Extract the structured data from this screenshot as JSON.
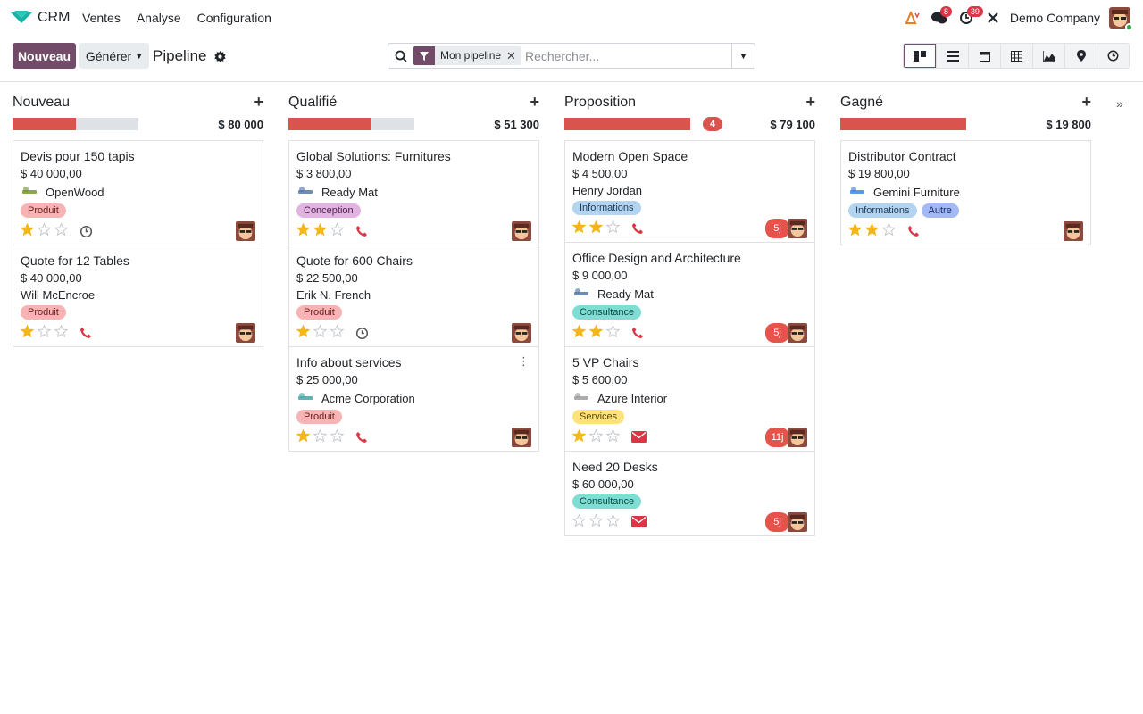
{
  "app": {
    "name": "CRM"
  },
  "menu": [
    "Ventes",
    "Analyse",
    "Configuration"
  ],
  "systray": {
    "messages_count": "8",
    "activities_count": "39",
    "company": "Demo Company"
  },
  "toolbar": {
    "new_label": "Nouveau",
    "generate_label": "Générer",
    "breadcrumb": "Pipeline"
  },
  "search": {
    "facet": "Mon pipeline",
    "placeholder": "Rechercher..."
  },
  "views": [
    "kanban-icon",
    "list-icon",
    "calendar-icon",
    "pivot-icon",
    "graph-icon",
    "map-icon",
    "activity-icon"
  ],
  "colors": {
    "accent": "#714b67",
    "progress": "#d9534f",
    "star": "#f3b71b"
  },
  "columns": [
    {
      "title": "Nouveau",
      "sum": "$ 80 000",
      "progress": 0.5,
      "count": "",
      "cards": [
        {
          "title": "Devis pour 150 tapis",
          "amount": "$ 40 000,00",
          "partner": "OpenWood",
          "tags": [
            {
              "label": "Produit",
              "type": "produit"
            }
          ],
          "stars": 1,
          "activity": "clock",
          "days": ""
        },
        {
          "title": "Quote for 12 Tables",
          "amount": "$ 40 000,00",
          "partner": "Will McEncroe",
          "tags": [
            {
              "label": "Produit",
              "type": "produit"
            }
          ],
          "stars": 1,
          "activity": "phone",
          "days": ""
        }
      ]
    },
    {
      "title": "Qualifié",
      "sum": "$ 51 300",
      "progress": 0.66,
      "count": "",
      "cards": [
        {
          "title": "Global Solutions: Furnitures",
          "amount": "$ 3 800,00",
          "partner": "Ready Mat",
          "tags": [
            {
              "label": "Conception",
              "type": "conception"
            }
          ],
          "stars": 2,
          "activity": "phone",
          "days": ""
        },
        {
          "title": "Quote for 600 Chairs",
          "amount": "$ 22 500,00",
          "partner": "Erik N. French",
          "tags": [
            {
              "label": "Produit",
              "type": "produit"
            }
          ],
          "stars": 1,
          "activity": "clock",
          "days": ""
        },
        {
          "title": "Info about services",
          "amount": "$ 25 000,00",
          "partner": "Acme Corporation",
          "tags": [
            {
              "label": "Produit",
              "type": "produit"
            }
          ],
          "stars": 1,
          "activity": "phone",
          "days": ""
        }
      ]
    },
    {
      "title": "Proposition",
      "sum": "$ 79 100",
      "progress": 1.0,
      "count": "4",
      "cards": [
        {
          "title": "Modern Open Space",
          "amount": "$ 4 500,00",
          "partner": "Henry Jordan",
          "tags": [
            {
              "label": "Informations",
              "type": "informations"
            }
          ],
          "stars": 2,
          "activity": "phone",
          "days": "5j"
        },
        {
          "title": "Office Design and Architecture",
          "amount": "$ 9 000,00",
          "partner": "Ready Mat",
          "tags": [
            {
              "label": "Consultance",
              "type": "consultance"
            }
          ],
          "stars": 2,
          "activity": "phone",
          "days": "5j"
        },
        {
          "title": "5 VP Chairs",
          "amount": "$ 5 600,00",
          "partner": "Azure Interior",
          "tags": [
            {
              "label": "Services",
              "type": "services"
            }
          ],
          "stars": 1,
          "activity": "email",
          "days": "11j"
        },
        {
          "title": "Need 20 Desks",
          "amount": "$ 60 000,00",
          "partner": "",
          "tags": [
            {
              "label": "Consultance",
              "type": "consultance"
            }
          ],
          "stars": 0,
          "activity": "email",
          "days": "5j"
        }
      ]
    },
    {
      "title": "Gagné",
      "sum": "$ 19 800",
      "progress": 1.0,
      "count": "",
      "cards": [
        {
          "title": "Distributor Contract",
          "amount": "$ 19 800,00",
          "partner": "Gemini Furniture",
          "tags": [
            {
              "label": "Informations",
              "type": "informations"
            },
            {
              "label": "Autre",
              "type": "autre"
            }
          ],
          "stars": 2,
          "activity": "phone",
          "days": ""
        }
      ]
    }
  ]
}
